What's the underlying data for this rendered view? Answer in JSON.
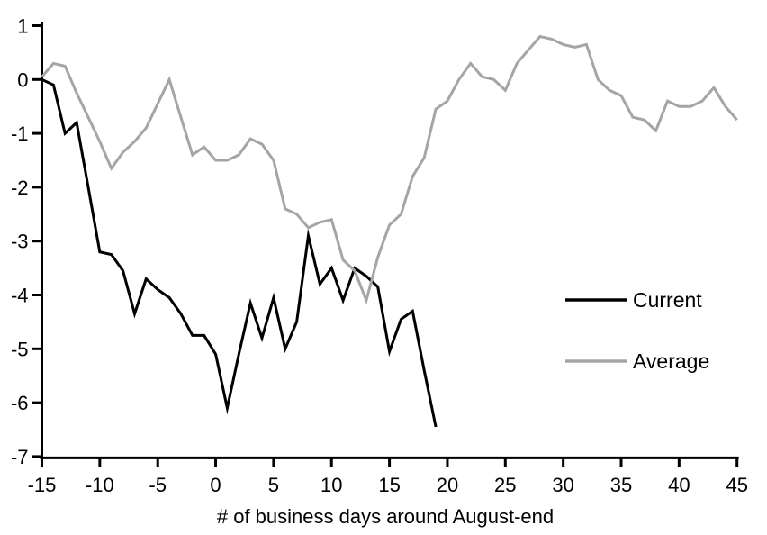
{
  "chart_data": {
    "type": "line",
    "xlabel": "# of business days around August-end",
    "ylabel": "",
    "xlim": [
      -15,
      45
    ],
    "ylim": [
      -7,
      1
    ],
    "xticks": [
      -15,
      -10,
      -5,
      0,
      5,
      10,
      15,
      20,
      25,
      30,
      35,
      40,
      45
    ],
    "yticks": [
      1,
      0,
      -1,
      -2,
      -3,
      -4,
      -5,
      -6,
      -7
    ],
    "grid": false,
    "legend_position": "right-middle",
    "axis_color": "#000000",
    "background_color": "#ffffff",
    "series": [
      {
        "name": "Current",
        "color": "#000000",
        "x": [
          -15,
          -14,
          -13,
          -12,
          -11,
          -10,
          -9,
          -8,
          -7,
          -6,
          -5,
          -4,
          -3,
          -2,
          -1,
          0,
          1,
          2,
          3,
          4,
          5,
          6,
          7,
          8,
          9,
          10,
          11,
          12,
          13,
          14,
          15,
          16,
          17,
          18,
          19
        ],
        "y": [
          0,
          -0.1,
          -1.0,
          -0.8,
          -2.0,
          -3.2,
          -3.25,
          -3.55,
          -4.35,
          -3.7,
          -3.9,
          -4.05,
          -4.35,
          -4.75,
          -4.75,
          -5.1,
          -6.1,
          -5.1,
          -4.15,
          -4.8,
          -4.05,
          -5.0,
          -4.5,
          -2.9,
          -3.8,
          -3.5,
          -4.1,
          -3.5,
          -3.65,
          -3.85,
          -5.05,
          -4.45,
          -4.3,
          -5.4,
          -6.45
        ]
      },
      {
        "name": "Average",
        "color": "#a5a5a5",
        "x": [
          -15,
          -14,
          -13,
          -12,
          -11,
          -10,
          -9,
          -8,
          -7,
          -6,
          -5,
          -4,
          -3,
          -2,
          -1,
          0,
          1,
          2,
          3,
          4,
          5,
          6,
          7,
          8,
          9,
          10,
          11,
          12,
          13,
          14,
          15,
          16,
          17,
          18,
          19,
          20,
          21,
          22,
          23,
          24,
          25,
          26,
          27,
          28,
          29,
          30,
          31,
          32,
          33,
          34,
          35,
          36,
          37,
          38,
          39,
          40,
          41,
          42,
          43,
          44,
          45
        ],
        "y": [
          0.05,
          0.3,
          0.25,
          -0.25,
          -0.7,
          -1.15,
          -1.65,
          -1.35,
          -1.15,
          -0.9,
          -0.45,
          0,
          -0.7,
          -1.4,
          -1.25,
          -1.5,
          -1.5,
          -1.4,
          -1.1,
          -1.2,
          -1.5,
          -2.4,
          -2.5,
          -2.75,
          -2.65,
          -2.6,
          -3.35,
          -3.55,
          -4.1,
          -3.3,
          -2.7,
          -2.5,
          -1.8,
          -1.45,
          -0.55,
          -0.4,
          0,
          0.3,
          0.05,
          0,
          -0.2,
          0.3,
          0.55,
          0.8,
          0.75,
          0.65,
          0.6,
          0.65,
          0,
          -0.2,
          -0.3,
          -0.7,
          -0.75,
          -0.95,
          -0.4,
          -0.5,
          -0.5,
          -0.4,
          -0.15,
          -0.5,
          -0.75
        ]
      }
    ]
  },
  "legend": {
    "items": [
      {
        "label": "Current",
        "color": "#000000"
      },
      {
        "label": "Average",
        "color": "#a5a5a5"
      }
    ]
  }
}
